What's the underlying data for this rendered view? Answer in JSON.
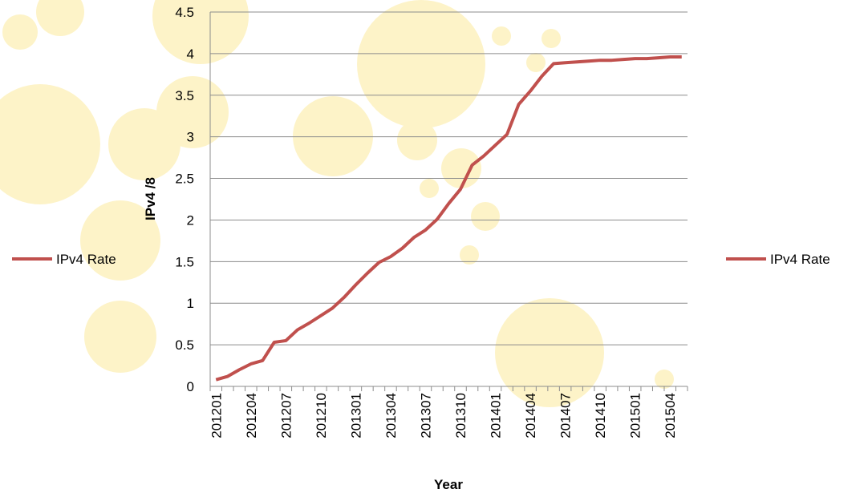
{
  "chart_data": {
    "type": "line",
    "x_label": "Year",
    "y_label": "IPv4 /8",
    "categories": [
      "201201",
      null,
      null,
      "201204",
      null,
      null,
      "201207",
      null,
      null,
      "201210",
      null,
      null,
      "201301",
      null,
      null,
      "201304",
      null,
      null,
      "201307",
      null,
      null,
      "201310",
      null,
      null,
      "201401",
      null,
      null,
      "201404",
      null,
      null,
      "201407",
      null,
      null,
      "201410",
      null,
      null,
      "201501",
      null,
      null,
      "201504",
      null
    ],
    "series": [
      {
        "name": "IPv4 Rate",
        "color": "#c0504d",
        "values": [
          0.08,
          0.12,
          0.2,
          0.27,
          0.31,
          0.53,
          0.55,
          0.68,
          0.76,
          0.85,
          0.94,
          1.07,
          1.22,
          1.36,
          1.49,
          1.56,
          1.66,
          1.79,
          1.88,
          2.01,
          2.2,
          2.37,
          2.66,
          2.77,
          2.9,
          3.03,
          3.39,
          3.55,
          3.73,
          3.88,
          3.89,
          3.9,
          3.91,
          3.92,
          3.92,
          3.93,
          3.94,
          3.94,
          3.95,
          3.96,
          3.96
        ]
      }
    ],
    "ylim": [
      0,
      4.5
    ],
    "yticks": [
      0,
      0.5,
      1,
      1.5,
      2,
      2.5,
      3,
      3.5,
      4,
      4.5
    ],
    "grid": true
  }
}
